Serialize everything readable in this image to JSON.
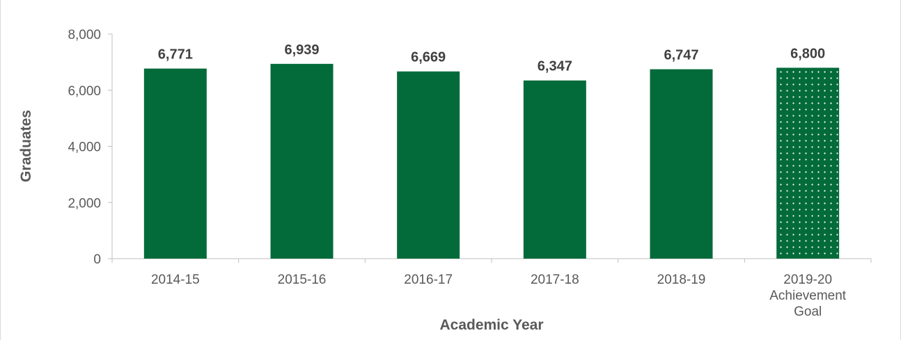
{
  "chart_data": {
    "type": "bar",
    "title": "",
    "xlabel": "Academic Year",
    "ylabel": "Graduates",
    "ylim": [
      0,
      8000
    ],
    "yticks": [
      0,
      2000,
      4000,
      6000,
      8000
    ],
    "ytick_labels": [
      "0",
      "2,000",
      "4,000",
      "6,000",
      "8,000"
    ],
    "grid": false,
    "legend": "none",
    "categories": [
      [
        "2014-15"
      ],
      [
        "2015-16"
      ],
      [
        "2016-17"
      ],
      [
        "2017-18"
      ],
      [
        "2018-19"
      ],
      [
        "2019-20",
        "Achievement",
        "Goal"
      ]
    ],
    "values": [
      6771,
      6939,
      6669,
      6347,
      6747,
      6800
    ],
    "data_labels": [
      "6,771",
      "6,939",
      "6,669",
      "6,347",
      "6,747",
      "6,800"
    ],
    "bar_styles": [
      "solid",
      "solid",
      "solid",
      "solid",
      "solid",
      "dotted"
    ],
    "colors": {
      "bar": "#036b3a",
      "dot": "#ffffff",
      "axis": "#bfbfbf"
    }
  }
}
